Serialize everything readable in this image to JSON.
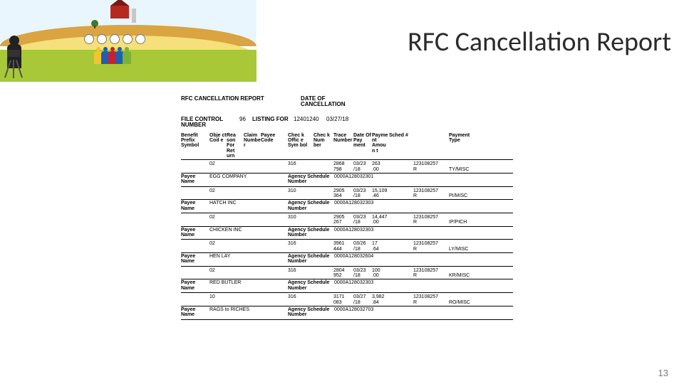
{
  "title": "RFC Cancellation Report",
  "page_number": "13",
  "report": {
    "header_label": "RFC CANCELLATION REPORT",
    "date_label": "DATE OF CANCELLATION",
    "meta": {
      "file_control_label": "FILE CONTROL NUMBER",
      "file_control_value": "96",
      "listing_for_label": "LISTING FOR",
      "listing_for_value": "12401240",
      "date_value": "03/27/18"
    },
    "column_headers": [
      "Benefit Prefix Symbol",
      "Object Code",
      "Reason For Return",
      "Claim Number",
      "Payee Code",
      "Check Office Symbol",
      "Check Number",
      "Trace Number",
      "Date Of Payment",
      "Payment Amount",
      "Sched #",
      "Payment Type"
    ],
    "payee_label": "Payee Name",
    "agency_label": "Agency Schedule Number",
    "entries": [
      {
        "object": "02",
        "payee_code": "316",
        "check_num": "2868",
        "trace": "798",
        "date": "03/23",
        "amount": "263.00",
        "sched": "123108257",
        "ptype": "TY/MISC",
        "payee": "EGG COMPANY",
        "agency": "0000A128032301"
      },
      {
        "object": "02",
        "payee_code": "310",
        "check_num": "2905",
        "trace": "364",
        "date": "03/23",
        "amount": "15,109.46",
        "sched": "123108257",
        "ptype": "PI/MISC",
        "payee": "HATCH INC",
        "agency": "0000A128032303"
      },
      {
        "object": "02",
        "payee_code": "310",
        "check_num": "2905",
        "trace": "267",
        "date": "03/23",
        "amount": "14,447.00",
        "sched": "123108257",
        "ptype": "IP/PICH",
        "payee": "CHICKEN INC",
        "agency": "0000A128032303"
      },
      {
        "object": "02",
        "payee_code": "316",
        "check_num": "3961",
        "trace": "444",
        "date": "03/26",
        "amount": "17.64",
        "sched": "123108257",
        "ptype": "LY/MISC",
        "payee": "HEN LAY",
        "agency": "0000A128032604"
      },
      {
        "object": "02",
        "payee_code": "316",
        "check_num": "2804",
        "trace": "952",
        "date": "03/23",
        "amount": "100.00",
        "sched": "123108257",
        "ptype": "KR/MISC",
        "payee": "RED BUTLER",
        "agency": "0000A128032303"
      },
      {
        "object": "10",
        "payee_code": "316",
        "check_num": "3171",
        "trace": "083",
        "date": "03/27",
        "amount": "3,982.84",
        "sched": "123108257",
        "ptype": "RO/MISC",
        "payee": "RAGS to RICHES",
        "agency": "0000A128032703"
      }
    ]
  },
  "colors": {
    "title": "#2b2b2b",
    "page_num": "#7a7a7a",
    "text": "#000000",
    "rule": "#000000"
  }
}
